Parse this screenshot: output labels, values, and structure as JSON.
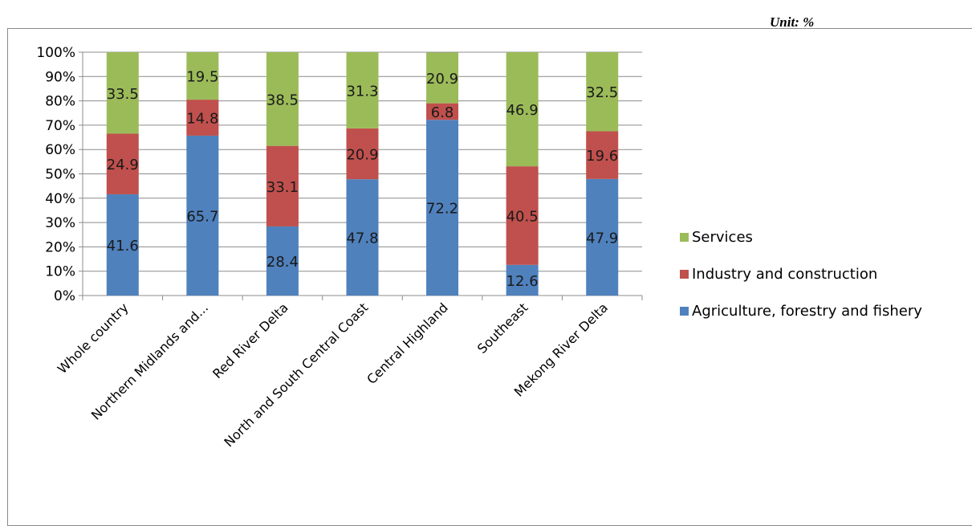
{
  "unit_label": "Unit: %",
  "chart_data": {
    "type": "bar",
    "stacked": true,
    "percent": true,
    "categories": [
      "Whole country",
      "Northern Midlands and...",
      "Red River Delta",
      "North and South Central Coast",
      "Central Highland",
      "Southeast",
      "Mekong River Delta"
    ],
    "series": [
      {
        "name": "Agriculture, forestry and fishery",
        "values": [
          41.6,
          65.7,
          28.4,
          47.8,
          72.2,
          12.6,
          47.9
        ],
        "color": "#4f81bd"
      },
      {
        "name": "Industry and construction",
        "values": [
          24.9,
          14.8,
          33.1,
          20.9,
          6.8,
          40.5,
          19.6
        ],
        "color": "#c0504d"
      },
      {
        "name": "Services",
        "values": [
          33.5,
          19.5,
          38.5,
          31.3,
          20.9,
          46.9,
          32.5
        ],
        "color": "#9bbb59"
      }
    ],
    "ylim": [
      0,
      100
    ],
    "yticks": [
      "0%",
      "10%",
      "20%",
      "30%",
      "40%",
      "50%",
      "60%",
      "70%",
      "80%",
      "90%",
      "100%"
    ],
    "grid": true,
    "legend_position": "right"
  }
}
